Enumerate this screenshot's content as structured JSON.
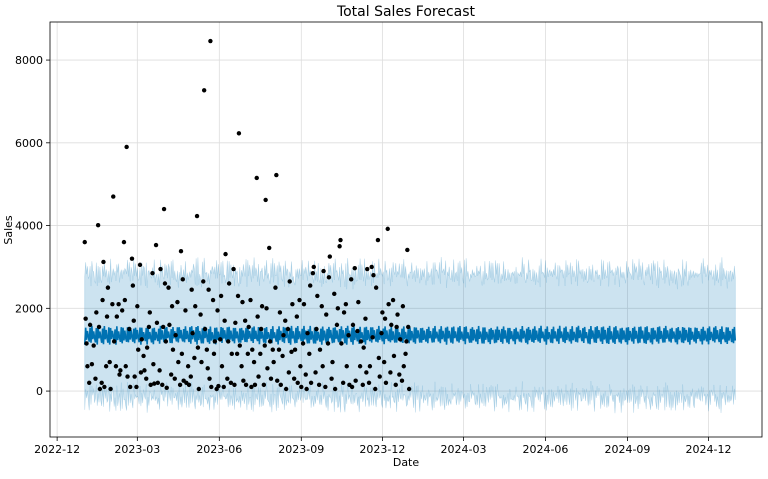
{
  "chart_data": {
    "type": "scatter",
    "title": "Total Sales Forecast",
    "xlabel": "Date",
    "ylabel": "Sales",
    "ylim": [
      -1110,
      8920
    ],
    "xlim": [
      "2022-11-23",
      "2025-01-30"
    ],
    "grid": true,
    "yticks": [
      0,
      2000,
      4000,
      6000,
      8000
    ],
    "xticks": [
      "2022-12",
      "2023-03",
      "2023-06",
      "2023-09",
      "2023-12",
      "2024-03",
      "2024-06",
      "2024-09",
      "2024-12"
    ],
    "colors": {
      "points": "#000000",
      "forecast": "#0072B2",
      "interval": "#0072B2",
      "grid": "#dddddd"
    },
    "observed": {
      "start_date": "2023-01-01",
      "x_unit": "days since start_date",
      "points": [
        [
          0,
          3600
        ],
        [
          1,
          1750
        ],
        [
          2,
          1150
        ],
        [
          3,
          600
        ],
        [
          5,
          200
        ],
        [
          6,
          1600
        ],
        [
          8,
          650
        ],
        [
          10,
          1100
        ],
        [
          12,
          300
        ],
        [
          13,
          1900
        ],
        [
          15,
          4010
        ],
        [
          16,
          1550
        ],
        [
          17,
          50
        ],
        [
          19,
          200
        ],
        [
          20,
          2200
        ],
        [
          21,
          3120
        ],
        [
          22,
          100
        ],
        [
          24,
          600
        ],
        [
          25,
          1800
        ],
        [
          26,
          2500
        ],
        [
          28,
          700
        ],
        [
          29,
          50
        ],
        [
          31,
          2100
        ],
        [
          32,
          4700
        ],
        [
          33,
          1200
        ],
        [
          35,
          600
        ],
        [
          36,
          1800
        ],
        [
          38,
          2100
        ],
        [
          39,
          400
        ],
        [
          40,
          500
        ],
        [
          42,
          1950
        ],
        [
          44,
          3600
        ],
        [
          45,
          2200
        ],
        [
          46,
          600
        ],
        [
          47,
          5900
        ],
        [
          48,
          350
        ],
        [
          50,
          1500
        ],
        [
          51,
          100
        ],
        [
          53,
          3200
        ],
        [
          54,
          2550
        ],
        [
          55,
          1700
        ],
        [
          56,
          350
        ],
        [
          58,
          100
        ],
        [
          59,
          2050
        ],
        [
          60,
          1000
        ],
        [
          62,
          3050
        ],
        [
          63,
          450
        ],
        [
          64,
          1250
        ],
        [
          66,
          850
        ],
        [
          67,
          500
        ],
        [
          69,
          300
        ],
        [
          70,
          1050
        ],
        [
          72,
          1550
        ],
        [
          73,
          1900
        ],
        [
          74,
          150
        ],
        [
          76,
          2850
        ],
        [
          77,
          650
        ],
        [
          78,
          180
        ],
        [
          80,
          3530
        ],
        [
          81,
          1650
        ],
        [
          82,
          200
        ],
        [
          84,
          500
        ],
        [
          85,
          2950
        ],
        [
          87,
          150
        ],
        [
          88,
          1550
        ],
        [
          89,
          4400
        ],
        [
          90,
          2600
        ],
        [
          91,
          1200
        ],
        [
          92,
          80
        ],
        [
          94,
          2500
        ],
        [
          95,
          1600
        ],
        [
          97,
          400
        ],
        [
          98,
          2050
        ],
        [
          99,
          1000
        ],
        [
          101,
          300
        ],
        [
          102,
          1350
        ],
        [
          104,
          2150
        ],
        [
          105,
          700
        ],
        [
          107,
          150
        ],
        [
          108,
          3380
        ],
        [
          109,
          900
        ],
        [
          110,
          2700
        ],
        [
          111,
          250
        ],
        [
          113,
          1950
        ],
        [
          114,
          200
        ],
        [
          116,
          600
        ],
        [
          117,
          150
        ],
        [
          119,
          350
        ],
        [
          120,
          2450
        ],
        [
          121,
          1400
        ],
        [
          123,
          800
        ],
        [
          124,
          2050
        ],
        [
          126,
          4230
        ],
        [
          127,
          1050
        ],
        [
          128,
          50
        ],
        [
          130,
          1850
        ],
        [
          131,
          700
        ],
        [
          133,
          2650
        ],
        [
          134,
          7270
        ],
        [
          135,
          1500
        ],
        [
          137,
          1000
        ],
        [
          138,
          550
        ],
        [
          139,
          2450
        ],
        [
          140,
          300
        ],
        [
          141,
          8460
        ],
        [
          142,
          100
        ],
        [
          144,
          2200
        ],
        [
          145,
          900
        ],
        [
          146,
          1200
        ],
        [
          148,
          50
        ],
        [
          149,
          1950
        ],
        [
          150,
          120
        ],
        [
          152,
          1250
        ],
        [
          153,
          2300
        ],
        [
          154,
          600
        ],
        [
          156,
          100
        ],
        [
          157,
          1700
        ],
        [
          158,
          3310
        ],
        [
          160,
          300
        ],
        [
          161,
          1200
        ],
        [
          162,
          2600
        ],
        [
          164,
          200
        ],
        [
          165,
          900
        ],
        [
          167,
          2950
        ],
        [
          168,
          150
        ],
        [
          169,
          1650
        ],
        [
          171,
          900
        ],
        [
          172,
          2300
        ],
        [
          173,
          6230
        ],
        [
          174,
          1100
        ],
        [
          176,
          600
        ],
        [
          177,
          2150
        ],
        [
          178,
          250
        ],
        [
          180,
          1700
        ],
        [
          181,
          150
        ],
        [
          183,
          900
        ],
        [
          184,
          1550
        ],
        [
          186,
          2200
        ],
        [
          187,
          100
        ],
        [
          188,
          1000
        ],
        [
          190,
          700
        ],
        [
          191,
          150
        ],
        [
          193,
          5150
        ],
        [
          194,
          1800
        ],
        [
          195,
          350
        ],
        [
          197,
          900
        ],
        [
          198,
          1500
        ],
        [
          199,
          2050
        ],
        [
          201,
          150
        ],
        [
          202,
          1100
        ],
        [
          203,
          4620
        ],
        [
          204,
          2000
        ],
        [
          205,
          550
        ],
        [
          207,
          3460
        ],
        [
          208,
          1200
        ],
        [
          209,
          300
        ],
        [
          211,
          1000
        ],
        [
          212,
          700
        ],
        [
          214,
          2500
        ],
        [
          215,
          5220
        ],
        [
          216,
          250
        ],
        [
          218,
          1000
        ],
        [
          219,
          1900
        ],
        [
          220,
          150
        ],
        [
          222,
          850
        ],
        [
          223,
          1350
        ],
        [
          225,
          1700
        ],
        [
          226,
          50
        ],
        [
          228,
          1500
        ],
        [
          229,
          450
        ],
        [
          230,
          2650
        ],
        [
          232,
          950
        ],
        [
          233,
          2100
        ],
        [
          235,
          300
        ],
        [
          236,
          1000
        ],
        [
          238,
          1800
        ],
        [
          239,
          200
        ],
        [
          241,
          2200
        ],
        [
          242,
          600
        ],
        [
          243,
          100
        ],
        [
          245,
          1150
        ],
        [
          246,
          2100
        ],
        [
          248,
          400
        ],
        [
          249,
          50
        ],
        [
          250,
          1400
        ],
        [
          252,
          900
        ],
        [
          253,
          2550
        ],
        [
          254,
          200
        ],
        [
          256,
          2850
        ],
        [
          257,
          3000
        ],
        [
          259,
          450
        ],
        [
          260,
          1500
        ],
        [
          261,
          2300
        ],
        [
          263,
          150
        ],
        [
          264,
          1000
        ],
        [
          266,
          2050
        ],
        [
          267,
          600
        ],
        [
          268,
          2900
        ],
        [
          270,
          100
        ],
        [
          271,
          1850
        ],
        [
          273,
          1150
        ],
        [
          274,
          2750
        ],
        [
          275,
          3250
        ],
        [
          277,
          300
        ],
        [
          278,
          700
        ],
        [
          280,
          2350
        ],
        [
          281,
          50
        ],
        [
          283,
          1600
        ],
        [
          284,
          2000
        ],
        [
          286,
          3500
        ],
        [
          287,
          3650
        ],
        [
          288,
          1150
        ],
        [
          290,
          200
        ],
        [
          291,
          1900
        ],
        [
          293,
          2100
        ],
        [
          294,
          600
        ],
        [
          296,
          1350
        ],
        [
          297,
          150
        ],
        [
          299,
          2700
        ],
        [
          300,
          100
        ],
        [
          301,
          1600
        ],
        [
          303,
          2970
        ],
        [
          304,
          250
        ],
        [
          306,
          1450
        ],
        [
          307,
          2150
        ],
        [
          309,
          600
        ],
        [
          310,
          1200
        ],
        [
          312,
          150
        ],
        [
          313,
          1050
        ],
        [
          315,
          1750
        ],
        [
          316,
          450
        ],
        [
          317,
          2950
        ],
        [
          319,
          200
        ],
        [
          320,
          600
        ],
        [
          322,
          3000
        ],
        [
          323,
          1300
        ],
        [
          324,
          2800
        ],
        [
          326,
          50
        ],
        [
          327,
          2500
        ],
        [
          329,
          3650
        ],
        [
          330,
          800
        ],
        [
          331,
          350
        ],
        [
          333,
          1400
        ],
        [
          334,
          1900
        ],
        [
          336,
          700
        ],
        [
          337,
          1750
        ],
        [
          338,
          200
        ],
        [
          340,
          3920
        ],
        [
          341,
          2100
        ],
        [
          343,
          450
        ],
        [
          344,
          1600
        ],
        [
          346,
          2200
        ],
        [
          347,
          850
        ],
        [
          349,
          150
        ],
        [
          350,
          1550
        ],
        [
          351,
          1850
        ],
        [
          353,
          400
        ],
        [
          354,
          1250
        ],
        [
          356,
          250
        ],
        [
          357,
          2050
        ],
        [
          358,
          600
        ],
        [
          360,
          900
        ],
        [
          361,
          1200
        ],
        [
          362,
          3410
        ],
        [
          363,
          1550
        ],
        [
          364,
          50
        ]
      ]
    },
    "forecast": {
      "start_date": "2023-01-01",
      "end_date": "2024-12-31",
      "weekly_yhat": [
        1150,
        1550,
        1250,
        1450,
        1300,
        1180,
        1520
      ],
      "interval_halfwidth": 1500,
      "yhat_range": [
        1100,
        1580
      ],
      "upper_range": [
        2650,
        3150
      ],
      "lower_range": [
        -450,
        100
      ]
    }
  }
}
